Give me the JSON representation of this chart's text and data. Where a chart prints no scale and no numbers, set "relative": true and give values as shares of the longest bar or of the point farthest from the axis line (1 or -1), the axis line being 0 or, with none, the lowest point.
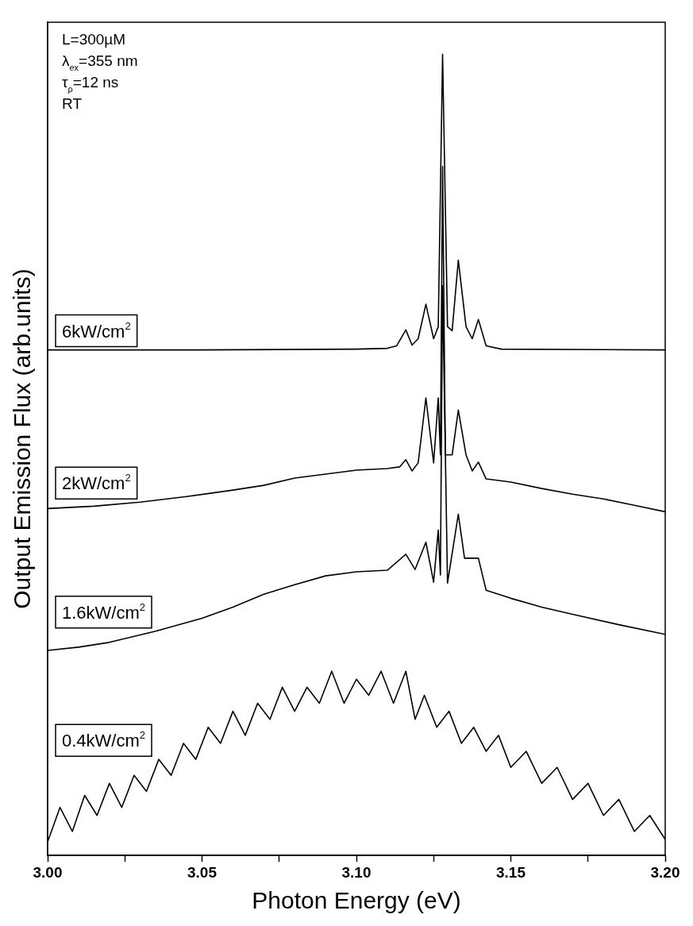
{
  "chart_data": {
    "type": "line",
    "relative": true,
    "xlabel": "Photon Energy (eV)",
    "ylabel": "Output Emission Flux (arb.units)",
    "xlim": [
      3.0,
      3.2
    ],
    "xticks": [
      {
        "value": 3.0,
        "label": "3.00"
      },
      {
        "value": 3.025,
        "label": null
      },
      {
        "value": 3.05,
        "label": "3.05"
      },
      {
        "value": 3.075,
        "label": null
      },
      {
        "value": 3.1,
        "label": "3.10"
      },
      {
        "value": 3.125,
        "label": null
      },
      {
        "value": 3.15,
        "label": "3.15"
      },
      {
        "value": 3.175,
        "label": null
      },
      {
        "value": 3.2,
        "label": "3.20"
      }
    ],
    "legend": false,
    "grid": false,
    "marker": "none",
    "line_style": "solid",
    "annotations": [
      "L=300µM",
      "λ$_{ex}$=355 nm",
      "τ$_{ρ}$=12 ns",
      "RT"
    ],
    "series": [
      {
        "name": "6kW/cm$^{2}$",
        "color": "#000000",
        "x": [
          3.0,
          3.05,
          3.1,
          3.11,
          3.113,
          3.116,
          3.118,
          3.12,
          3.1225,
          3.125,
          3.1265,
          3.1279,
          3.1295,
          3.131,
          3.133,
          3.1355,
          3.1375,
          3.1395,
          3.142,
          3.147,
          3.2
        ],
        "values": [
          0.631,
          0.631,
          0.632,
          0.633,
          0.636,
          0.656,
          0.637,
          0.645,
          0.688,
          0.645,
          0.66,
          1.0,
          0.66,
          0.655,
          0.743,
          0.66,
          0.645,
          0.669,
          0.636,
          0.632,
          0.631
        ]
      },
      {
        "name": "2kW/cm$^{2}$",
        "color": "#000000",
        "x": [
          3.0,
          3.015,
          3.03,
          3.045,
          3.06,
          3.07,
          3.08,
          3.09,
          3.1,
          3.11,
          3.114,
          3.116,
          3.118,
          3.12,
          3.1225,
          3.125,
          3.1265,
          3.1272,
          3.1279,
          3.1288,
          3.131,
          3.133,
          3.1355,
          3.1375,
          3.1395,
          3.142,
          3.15,
          3.16,
          3.17,
          3.18,
          3.19,
          3.2
        ],
        "values": [
          0.433,
          0.436,
          0.441,
          0.448,
          0.456,
          0.462,
          0.471,
          0.476,
          0.481,
          0.483,
          0.485,
          0.494,
          0.48,
          0.49,
          0.571,
          0.49,
          0.571,
          0.5,
          0.86,
          0.5,
          0.5,
          0.556,
          0.5,
          0.48,
          0.491,
          0.47,
          0.466,
          0.458,
          0.451,
          0.445,
          0.437,
          0.429
        ]
      },
      {
        "name": "1.6kW/cm$^{2}$",
        "color": "#000000",
        "x": [
          3.0,
          3.01,
          3.02,
          3.035,
          3.05,
          3.06,
          3.07,
          3.08,
          3.09,
          3.1,
          3.11,
          3.116,
          3.119,
          3.1225,
          3.125,
          3.1265,
          3.1272,
          3.1279,
          3.1295,
          3.133,
          3.135,
          3.1395,
          3.142,
          3.15,
          3.16,
          3.17,
          3.185,
          3.2
        ],
        "values": [
          0.256,
          0.26,
          0.266,
          0.28,
          0.296,
          0.31,
          0.326,
          0.338,
          0.349,
          0.354,
          0.356,
          0.376,
          0.357,
          0.391,
          0.341,
          0.406,
          0.35,
          0.711,
          0.34,
          0.426,
          0.371,
          0.371,
          0.331,
          0.321,
          0.31,
          0.301,
          0.288,
          0.276
        ]
      },
      {
        "name": "0.4kW/cm$^{2}$",
        "color": "#000000",
        "x": [
          3.0,
          3.004,
          3.008,
          3.012,
          3.016,
          3.02,
          3.024,
          3.028,
          3.032,
          3.036,
          3.04,
          3.044,
          3.048,
          3.052,
          3.056,
          3.06,
          3.064,
          3.068,
          3.072,
          3.076,
          3.08,
          3.084,
          3.088,
          3.092,
          3.096,
          3.1,
          3.104,
          3.108,
          3.112,
          3.116,
          3.119,
          3.122,
          3.126,
          3.13,
          3.134,
          3.138,
          3.142,
          3.146,
          3.15,
          3.155,
          3.16,
          3.165,
          3.17,
          3.175,
          3.18,
          3.185,
          3.19,
          3.195,
          3.2
        ],
        "values": [
          0.017,
          0.06,
          0.03,
          0.075,
          0.05,
          0.09,
          0.06,
          0.1,
          0.08,
          0.12,
          0.1,
          0.14,
          0.12,
          0.16,
          0.14,
          0.18,
          0.15,
          0.19,
          0.17,
          0.21,
          0.18,
          0.21,
          0.19,
          0.23,
          0.19,
          0.22,
          0.2,
          0.23,
          0.19,
          0.23,
          0.17,
          0.2,
          0.16,
          0.18,
          0.14,
          0.16,
          0.13,
          0.15,
          0.11,
          0.13,
          0.09,
          0.11,
          0.07,
          0.09,
          0.05,
          0.07,
          0.03,
          0.05,
          0.02
        ]
      }
    ]
  }
}
